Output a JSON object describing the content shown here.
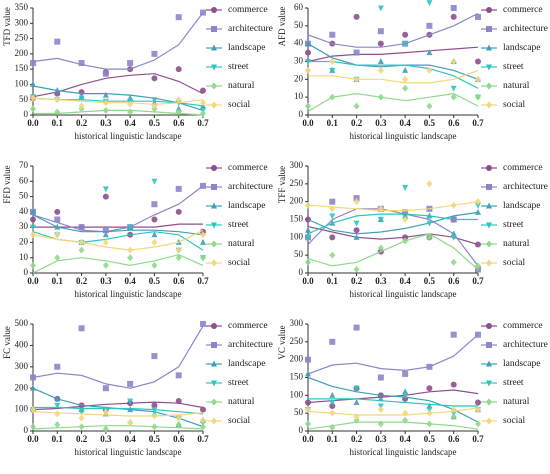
{
  "chart_data": [
    {
      "type": "scatter",
      "ylabel": "TFD value",
      "xlabel": "historical linguistic landscape",
      "x": [
        0,
        0.1,
        0.2,
        0.3,
        0.4,
        0.5,
        0.6,
        0.7
      ],
      "xlim": [
        0,
        0.7
      ],
      "xticks": [
        {
          "value": 0,
          "label": "0.0"
        },
        0.1,
        0.2,
        0.3,
        0.4,
        0.5,
        0.6,
        0.7
      ],
      "ylim": [
        0,
        350
      ],
      "yticks": [
        0,
        50,
        100,
        150,
        200,
        250,
        300,
        350
      ],
      "series": [
        {
          "name": "commerce",
          "color": "#8e4e8e",
          "marker": "circle",
          "values": [
            55,
            70,
            75,
            140,
            150,
            120,
            150,
            80
          ],
          "trend": [
            60,
            75,
            100,
            120,
            130,
            135,
            110,
            70
          ]
        },
        {
          "name": "architecture",
          "color": "#8b86c9",
          "marker": "square",
          "values": [
            170,
            240,
            170,
            135,
            170,
            200,
            320,
            335
          ],
          "trend": [
            175,
            185,
            165,
            150,
            150,
            180,
            230,
            335
          ]
        },
        {
          "name": "landscape",
          "color": "#3f9fb7",
          "marker": "triangle",
          "values": [
            100,
            80,
            60,
            65,
            55,
            40,
            20,
            30
          ],
          "trend": [
            95,
            80,
            70,
            70,
            65,
            55,
            40,
            15
          ]
        },
        {
          "name": "street",
          "color": "#2ec5c0",
          "marker": "triangle-down",
          "values": [
            60,
            50,
            55,
            45,
            45,
            50,
            40,
            15
          ],
          "trend": [
            55,
            50,
            50,
            45,
            45,
            45,
            40,
            30
          ]
        },
        {
          "name": "natural",
          "color": "#8fd98a",
          "marker": "diamond",
          "values": [
            20,
            10,
            20,
            15,
            10,
            20,
            10,
            5
          ],
          "trend": [
            5,
            5,
            10,
            15,
            15,
            10,
            5,
            0
          ]
        },
        {
          "name": "social",
          "color": "#f2d77a",
          "marker": "diamond",
          "values": [
            55,
            50,
            30,
            40,
            35,
            30,
            50,
            40
          ],
          "trend": [
            55,
            50,
            45,
            40,
            40,
            35,
            40,
            50
          ]
        }
      ]
    },
    {
      "type": "scatter",
      "ylabel": "AFD value",
      "xlabel": "historical linguistic landscape",
      "x": [
        0,
        0.1,
        0.2,
        0.3,
        0.4,
        0.5,
        0.6,
        0.7
      ],
      "xlim": [
        0,
        0.7
      ],
      "xticks": [
        {
          "value": 0,
          "label": "0.0"
        },
        0.1,
        0.2,
        0.3,
        0.4,
        0.5,
        0.6,
        0.7
      ],
      "ylim": [
        0,
        60
      ],
      "yticks": [
        0,
        10,
        20,
        30,
        40,
        50,
        60
      ],
      "series": [
        {
          "name": "commerce",
          "color": "#8e4e8e",
          "marker": "circle",
          "values": [
            35,
            40,
            55,
            40,
            45,
            45,
            55,
            30
          ],
          "trend": [
            30,
            33,
            34,
            34,
            35,
            36,
            37,
            38
          ]
        },
        {
          "name": "architecture",
          "color": "#8b86c9",
          "marker": "square",
          "values": [
            40,
            45,
            35,
            47,
            40,
            50,
            60,
            55
          ],
          "trend": [
            45,
            40,
            38,
            38,
            40,
            45,
            50,
            57
          ]
        },
        {
          "name": "landscape",
          "color": "#3f9fb7",
          "marker": "triangle",
          "values": [
            40,
            25,
            20,
            30,
            25,
            35,
            30,
            20
          ],
          "trend": [
            40,
            32,
            28,
            27,
            28,
            28,
            25,
            20
          ]
        },
        {
          "name": "street",
          "color": "#2ec5c0",
          "marker": "triangle-down",
          "values": [
            30,
            25,
            20,
            60,
            40,
            63,
            15,
            10
          ],
          "trend": [
            30,
            30,
            28,
            28,
            28,
            26,
            22,
            15
          ]
        },
        {
          "name": "natural",
          "color": "#8fd98a",
          "marker": "diamond",
          "values": [
            5,
            10,
            5,
            10,
            15,
            5,
            10,
            10
          ],
          "trend": [
            2,
            10,
            12,
            10,
            8,
            10,
            12,
            5
          ]
        },
        {
          "name": "social",
          "color": "#f2d77a",
          "marker": "diamond",
          "values": [
            25,
            30,
            20,
            25,
            20,
            25,
            30,
            20
          ],
          "trend": [
            22,
            22,
            20,
            20,
            18,
            18,
            20,
            25
          ]
        }
      ]
    },
    {
      "type": "scatter",
      "ylabel": "FFD value",
      "xlabel": "historical linguistic landscape",
      "x": [
        0,
        0.1,
        0.2,
        0.3,
        0.4,
        0.5,
        0.6,
        0.7
      ],
      "xlim": [
        0,
        0.7
      ],
      "xticks": [
        {
          "value": 0,
          "label": "0.0"
        },
        0.1,
        0.2,
        0.3,
        0.4,
        0.5,
        0.6,
        0.7
      ],
      "ylim": [
        0,
        70
      ],
      "yticks": [
        0,
        10,
        20,
        30,
        40,
        50,
        60,
        70
      ],
      "series": [
        {
          "name": "commerce",
          "color": "#8e4e8e",
          "marker": "circle",
          "values": [
            35,
            40,
            30,
            50,
            25,
            35,
            40,
            27
          ],
          "trend": [
            30,
            30,
            30,
            30,
            30,
            30,
            32,
            32
          ]
        },
        {
          "name": "architecture",
          "color": "#8b86c9",
          "marker": "square",
          "values": [
            40,
            35,
            30,
            28,
            30,
            45,
            55,
            57
          ],
          "trend": [
            38,
            33,
            28,
            27,
            30,
            38,
            45,
            57
          ]
        },
        {
          "name": "landscape",
          "color": "#3f9fb7",
          "marker": "triangle",
          "values": [
            40,
            30,
            20,
            25,
            30,
            25,
            20,
            20
          ],
          "trend": [
            38,
            30,
            27,
            27,
            28,
            28,
            27,
            25
          ]
        },
        {
          "name": "street",
          "color": "#2ec5c0",
          "marker": "triangle-down",
          "values": [
            30,
            25,
            20,
            55,
            30,
            60,
            15,
            10
          ],
          "trend": [
            27,
            22,
            20,
            22,
            25,
            27,
            25,
            15
          ]
        },
        {
          "name": "natural",
          "color": "#8fd98a",
          "marker": "diamond",
          "values": [
            5,
            10,
            15,
            5,
            10,
            5,
            10,
            10
          ],
          "trend": [
            0,
            8,
            10,
            8,
            5,
            8,
            12,
            5
          ]
        },
        {
          "name": "social",
          "color": "#f2d77a",
          "marker": "diamond",
          "values": [
            25,
            25,
            20,
            20,
            15,
            20,
            15,
            25
          ],
          "trend": [
            25,
            22,
            20,
            17,
            15,
            17,
            20,
            28
          ]
        }
      ]
    },
    {
      "type": "scatter",
      "ylabel": "TFF value",
      "xlabel": "historical linguistic landscape",
      "x": [
        0,
        0.1,
        0.2,
        0.3,
        0.4,
        0.5,
        0.6,
        0.7
      ],
      "xlim": [
        0,
        0.7
      ],
      "xticks": [
        {
          "value": 0,
          "label": "0.0"
        },
        0.1,
        0.2,
        0.3,
        0.4,
        0.5,
        0.6,
        0.7
      ],
      "ylim": [
        0,
        300
      ],
      "yticks": [
        0,
        50,
        100,
        150,
        200,
        250,
        300
      ],
      "series": [
        {
          "name": "commerce",
          "color": "#8e4e8e",
          "marker": "circle",
          "values": [
            150,
            100,
            120,
            60,
            100,
            100,
            150,
            80
          ],
          "trend": [
            130,
            115,
            100,
            95,
            100,
            110,
            100,
            80
          ]
        },
        {
          "name": "architecture",
          "color": "#8b86c9",
          "marker": "square",
          "values": [
            100,
            200,
            210,
            180,
            170,
            180,
            150,
            10
          ],
          "trend": [
            80,
            150,
            180,
            180,
            165,
            150,
            110,
            20
          ]
        },
        {
          "name": "landscape",
          "color": "#3f9fb7",
          "marker": "triangle",
          "values": [
            120,
            140,
            100,
            150,
            160,
            160,
            110,
            170
          ],
          "trend": [
            150,
            120,
            110,
            115,
            125,
            140,
            160,
            170
          ]
        },
        {
          "name": "street",
          "color": "#2ec5c0",
          "marker": "triangle-down",
          "values": [
            100,
            160,
            140,
            150,
            240,
            140,
            100,
            190
          ],
          "trend": [
            110,
            140,
            160,
            165,
            165,
            160,
            150,
            150
          ]
        },
        {
          "name": "natural",
          "color": "#8fd98a",
          "marker": "diamond",
          "values": [
            30,
            50,
            10,
            70,
            90,
            100,
            30,
            20
          ],
          "trend": [
            40,
            20,
            30,
            60,
            90,
            110,
            70,
            10
          ]
        },
        {
          "name": "social",
          "color": "#f2d77a",
          "marker": "diamond",
          "values": [
            190,
            180,
            200,
            180,
            150,
            250,
            190,
            200
          ],
          "trend": [
            190,
            185,
            180,
            175,
            175,
            180,
            190,
            200
          ]
        }
      ]
    },
    {
      "type": "scatter",
      "ylabel": "FC value",
      "xlabel": "historical linguistic landscape",
      "x": [
        0,
        0.1,
        0.2,
        0.3,
        0.4,
        0.5,
        0.6,
        0.7
      ],
      "xlim": [
        0,
        0.7
      ],
      "xticks": [
        {
          "value": 0,
          "label": "0.0"
        },
        0.1,
        0.2,
        0.3,
        0.4,
        0.5,
        0.6,
        0.7
      ],
      "ylim": [
        0,
        500
      ],
      "yticks": [
        0,
        100,
        200,
        300,
        400,
        500
      ],
      "series": [
        {
          "name": "commerce",
          "color": "#8e4e8e",
          "marker": "circle",
          "values": [
            100,
            150,
            120,
            100,
            130,
            120,
            140,
            100
          ],
          "trend": [
            100,
            105,
            115,
            125,
            130,
            135,
            130,
            110
          ]
        },
        {
          "name": "architecture",
          "color": "#8b86c9",
          "marker": "square",
          "values": [
            250,
            300,
            480,
            200,
            220,
            350,
            260,
            500
          ],
          "trend": [
            250,
            270,
            260,
            220,
            200,
            230,
            300,
            490
          ]
        },
        {
          "name": "landscape",
          "color": "#3f9fb7",
          "marker": "triangle",
          "values": [
            200,
            150,
            100,
            80,
            100,
            80,
            30,
            50
          ],
          "trend": [
            200,
            150,
            120,
            110,
            100,
            90,
            60,
            20
          ]
        },
        {
          "name": "street",
          "color": "#2ec5c0",
          "marker": "triangle-down",
          "values": [
            100,
            120,
            90,
            100,
            140,
            100,
            60,
            40
          ],
          "trend": [
            110,
            110,
            105,
            105,
            105,
            100,
            90,
            80
          ]
        },
        {
          "name": "natural",
          "color": "#8fd98a",
          "marker": "diamond",
          "values": [
            20,
            30,
            20,
            10,
            40,
            20,
            30,
            20
          ],
          "trend": [
            10,
            15,
            20,
            25,
            25,
            20,
            15,
            10
          ]
        },
        {
          "name": "social",
          "color": "#f2d77a",
          "marker": "diamond",
          "values": [
            100,
            80,
            60,
            90,
            40,
            70,
            60,
            50
          ],
          "trend": [
            90,
            85,
            80,
            75,
            70,
            70,
            75,
            85
          ]
        }
      ]
    },
    {
      "type": "scatter",
      "ylabel": "VC value",
      "xlabel": "historical linguistic landscape",
      "x": [
        0,
        0.1,
        0.2,
        0.3,
        0.4,
        0.5,
        0.6,
        0.7
      ],
      "xlim": [
        0,
        0.7
      ],
      "xticks": [
        {
          "value": 0,
          "label": "0.0"
        },
        0.1,
        0.2,
        0.3,
        0.4,
        0.5,
        0.6,
        0.7
      ],
      "ylim": [
        0,
        300
      ],
      "yticks": [
        0,
        50,
        100,
        150,
        200,
        250,
        300
      ],
      "series": [
        {
          "name": "commerce",
          "color": "#8e4e8e",
          "marker": "circle",
          "values": [
            80,
            70,
            120,
            100,
            90,
            120,
            130,
            80
          ],
          "trend": [
            80,
            85,
            90,
            95,
            100,
            110,
            115,
            105
          ]
        },
        {
          "name": "architecture",
          "color": "#8b86c9",
          "marker": "square",
          "values": [
            200,
            250,
            290,
            150,
            160,
            180,
            270,
            270
          ],
          "trend": [
            160,
            185,
            190,
            175,
            170,
            180,
            210,
            270
          ]
        },
        {
          "name": "landscape",
          "color": "#3f9fb7",
          "marker": "triangle",
          "values": [
            160,
            100,
            80,
            90,
            110,
            70,
            40,
            60
          ],
          "trend": [
            150,
            125,
            110,
            100,
            95,
            85,
            60,
            25
          ]
        },
        {
          "name": "street",
          "color": "#2ec5c0",
          "marker": "triangle-down",
          "values": [
            60,
            80,
            120,
            70,
            100,
            60,
            50,
            60
          ],
          "trend": [
            90,
            90,
            90,
            85,
            80,
            75,
            70,
            70
          ]
        },
        {
          "name": "natural",
          "color": "#8fd98a",
          "marker": "diamond",
          "values": [
            20,
            10,
            30,
            20,
            30,
            20,
            40,
            20
          ],
          "trend": [
            5,
            15,
            25,
            25,
            25,
            20,
            15,
            5
          ]
        },
        {
          "name": "social",
          "color": "#f2d77a",
          "marker": "diamond",
          "values": [
            60,
            50,
            40,
            60,
            50,
            50,
            60,
            60
          ],
          "trend": [
            55,
            50,
            45,
            45,
            45,
            50,
            55,
            65
          ]
        }
      ]
    }
  ]
}
